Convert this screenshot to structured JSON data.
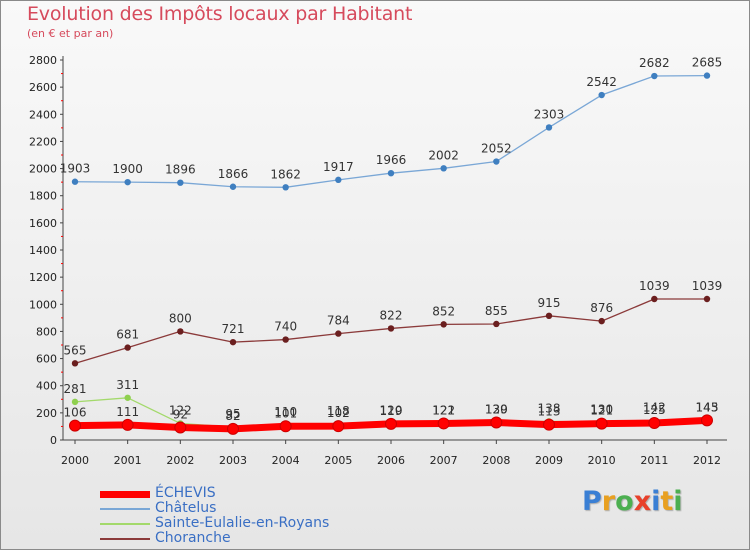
{
  "title": "Evolution des Impôts locaux par Habitant",
  "subtitle": "(en € et par an)",
  "logo": {
    "letters": [
      {
        "ch": "P",
        "color": "#3a7fd4"
      },
      {
        "ch": "r",
        "color": "#e8a020"
      },
      {
        "ch": "o",
        "color": "#4caf50"
      },
      {
        "ch": "x",
        "color": "#e8402a"
      },
      {
        "ch": "i",
        "color": "#3a7fd4"
      },
      {
        "ch": "t",
        "color": "#e8a020"
      },
      {
        "ch": "i",
        "color": "#4caf50"
      }
    ]
  },
  "chart_data": {
    "type": "line",
    "title": "Evolution des Impôts locaux par Habitant",
    "subtitle": "(en € et par an)",
    "x": [
      "2000",
      "2001",
      "2002",
      "2003",
      "2004",
      "2005",
      "2006",
      "2007",
      "2008",
      "2009",
      "2010",
      "2011",
      "2012"
    ],
    "ylim": [
      0,
      2800
    ],
    "yticks": [
      0,
      200,
      400,
      600,
      800,
      1000,
      1200,
      1400,
      1600,
      1800,
      2000,
      2200,
      2400,
      2600,
      2800
    ],
    "grid": false,
    "legend_position": "bottom-left",
    "series": [
      {
        "name": "ÉCHEVIS",
        "color": "#ff0000",
        "marker": "#ff0000",
        "values": [
          106,
          111,
          92,
          82,
          101,
          102,
          119,
          122,
          129,
          113,
          121,
          125,
          145
        ],
        "labels": [
          "106",
          "111",
          "92",
          "82",
          "101",
          "102",
          "119",
          "122",
          "129",
          "113",
          "121",
          "125",
          "145"
        ]
      },
      {
        "name": "Châtelus",
        "color": "#7aa7d6",
        "marker": "#3f7fc0",
        "values": [
          1903,
          1900,
          1896,
          1866,
          1862,
          1917,
          1966,
          2002,
          2052,
          2303,
          2542,
          2682,
          2685
        ],
        "labels": [
          "1903",
          "1900",
          "1896",
          "1866",
          "1862",
          "1917",
          "1966",
          "2002",
          "2052",
          "2303",
          "2542",
          "2682",
          "2685"
        ]
      },
      {
        "name": "Sainte-Eulalie-en-Royans",
        "color": "#a3d96b",
        "marker": "#8fd04f",
        "values": [
          281,
          311,
          122,
          95,
          110,
          118,
          120,
          121,
          130,
          138,
          130,
          142,
          143
        ],
        "labels": [
          "281",
          "311",
          "122",
          "95",
          "110",
          "118",
          "120",
          "121",
          "130",
          "138",
          "130",
          "142",
          "143"
        ]
      },
      {
        "name": "Choranche",
        "color": "#8b3a3a",
        "marker": "#6b1f1f",
        "values": [
          565,
          681,
          800,
          721,
          740,
          784,
          822,
          852,
          855,
          915,
          876,
          1039,
          1039
        ],
        "labels": [
          "565",
          "681",
          "800",
          "721",
          "740",
          "784",
          "822",
          "852",
          "855",
          "915",
          "876",
          "1039",
          "1039"
        ]
      }
    ]
  }
}
